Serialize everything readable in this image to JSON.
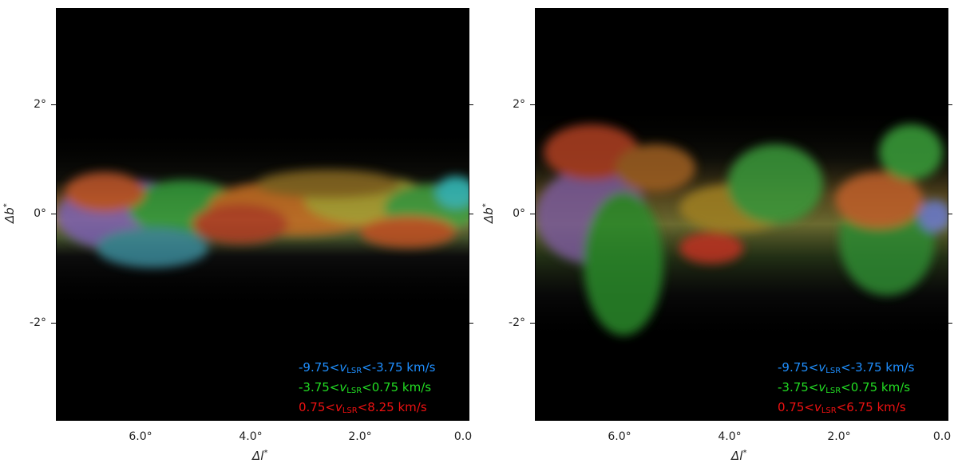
{
  "panels": [
    {
      "xlabel": "Δl",
      "ylabel": "Δb",
      "xlabel_sup": "*",
      "ylabel_sup": "*",
      "xticks": [
        "6.0°",
        "4.0°",
        "2.0°",
        "0.0"
      ],
      "yticks": [
        "2°",
        "0°",
        "-2°"
      ],
      "legend": [
        {
          "color": "#1f8fff",
          "pre": "-9.75<",
          "v": "v",
          "sub": "LSR",
          "post": "<-3.75 km/s"
        },
        {
          "color": "#22dd22",
          "pre": "-3.75<",
          "v": "v",
          "sub": "LSR",
          "post": "<0.75 km/s"
        },
        {
          "color": "#ee1111",
          "pre": "0.75<",
          "v": "v",
          "sub": "LSR",
          "post": "<8.25 km/s"
        }
      ]
    },
    {
      "xlabel": "Δl",
      "ylabel": "Δb",
      "xlabel_sup": "*",
      "ylabel_sup": "*",
      "xticks": [
        "6.0°",
        "4.0°",
        "2.0°",
        "0.0"
      ],
      "yticks": [
        "2°",
        "0°",
        "-2°"
      ],
      "legend": [
        {
          "color": "#1f8fff",
          "pre": "-9.75<",
          "v": "v",
          "sub": "LSR",
          "post": "<-3.75 km/s"
        },
        {
          "color": "#22dd22",
          "pre": "-3.75<",
          "v": "v",
          "sub": "LSR",
          "post": "<0.75 km/s"
        },
        {
          "color": "#ee1111",
          "pre": "0.75<",
          "v": "v",
          "sub": "LSR",
          "post": "<6.75 km/s"
        }
      ]
    }
  ]
}
